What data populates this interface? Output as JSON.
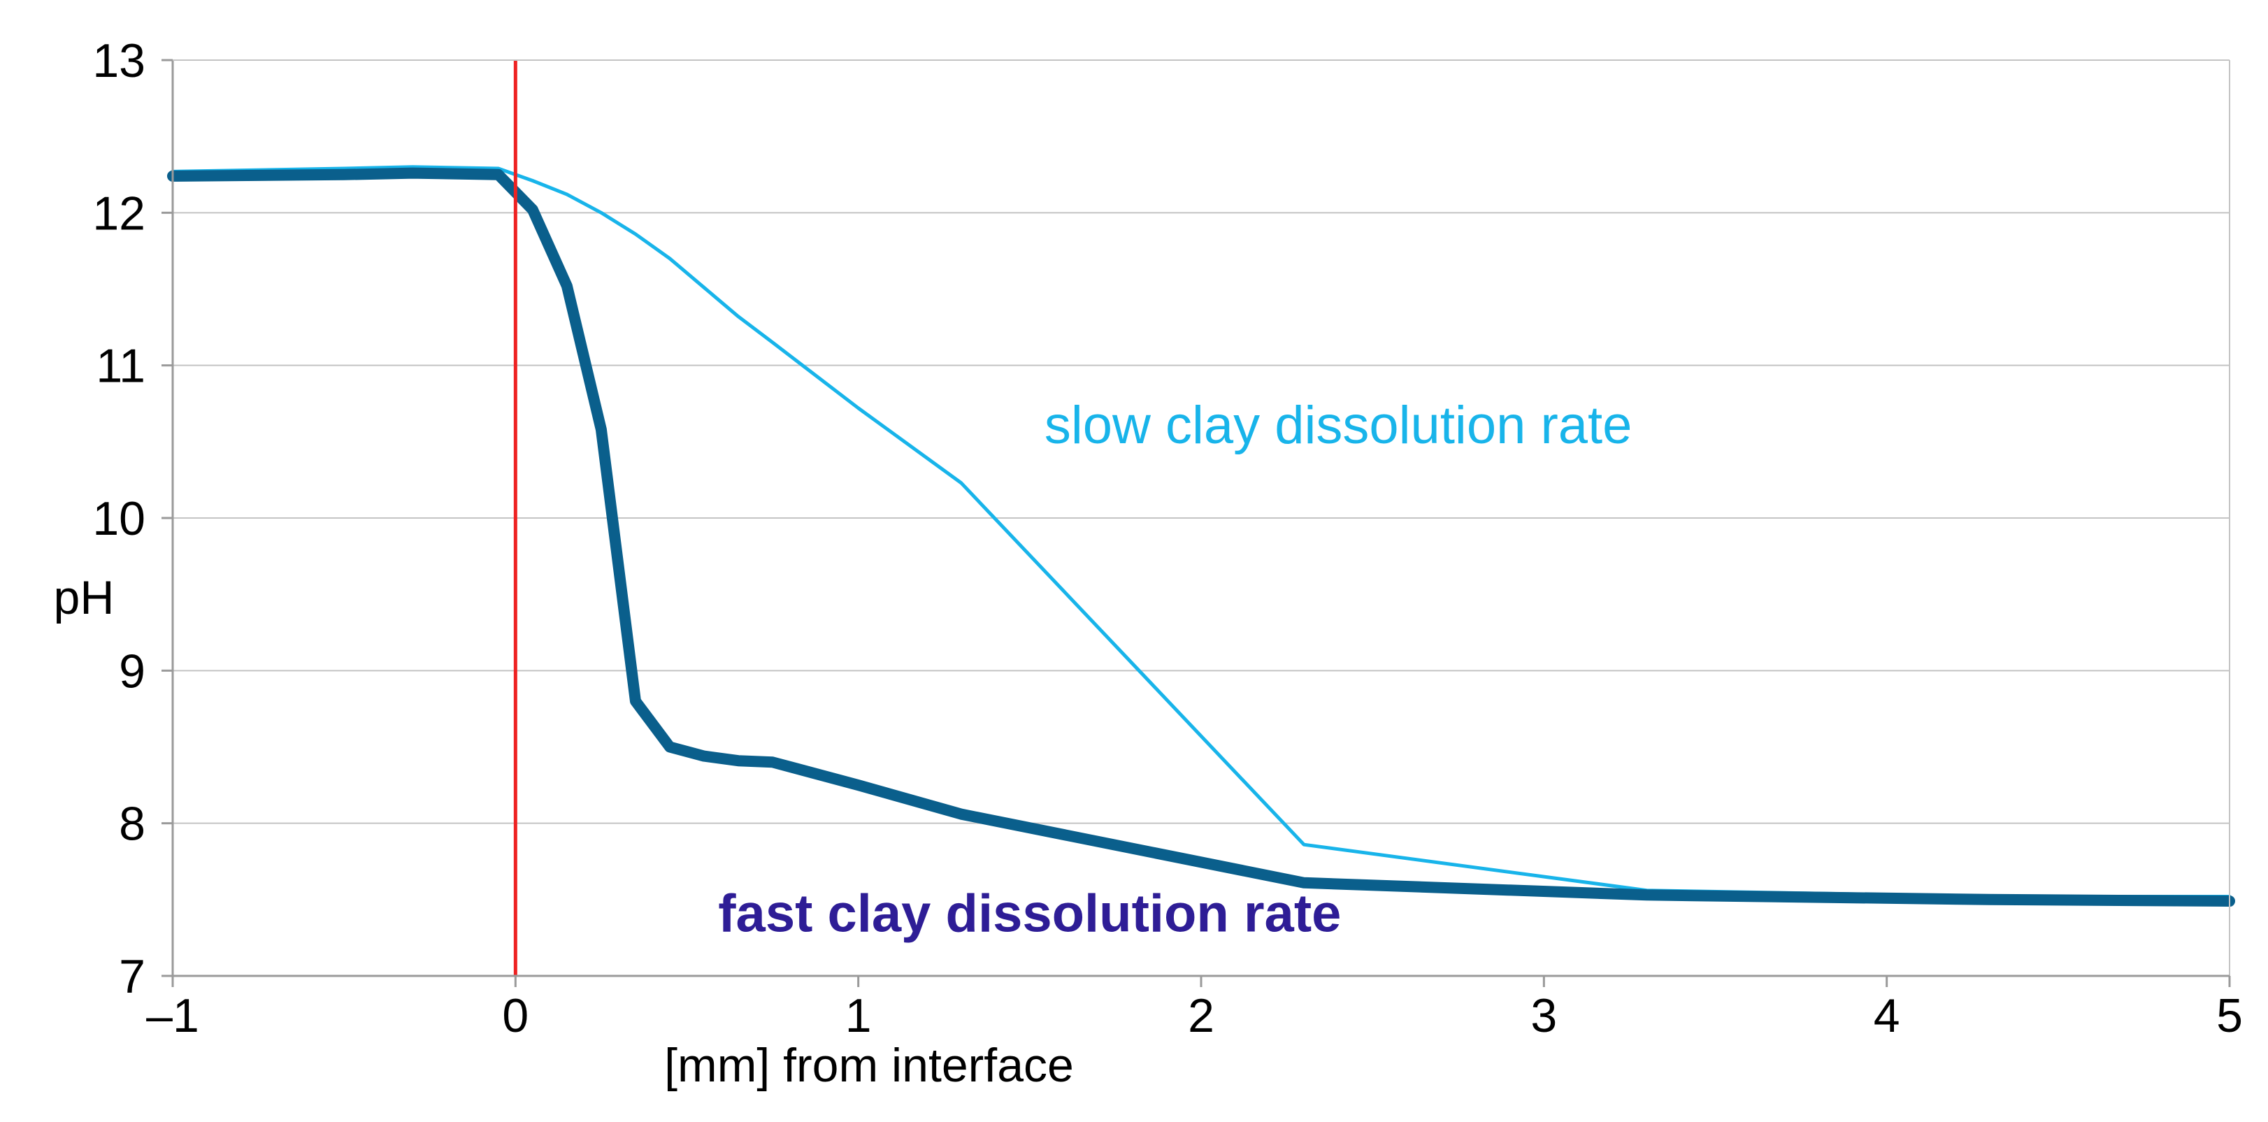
{
  "chart_data": {
    "type": "line",
    "title": "",
    "xlabel": "[mm] from interface",
    "ylabel": "pH",
    "xlim": [
      -1,
      5
    ],
    "ylim": [
      7,
      13
    ],
    "xticks": [
      -1,
      0,
      1,
      2,
      3,
      4,
      5
    ],
    "xtick_labels": [
      "–1",
      "0",
      "1",
      "2",
      "3",
      "4",
      "5"
    ],
    "yticks": [
      7,
      8,
      9,
      10,
      11,
      12,
      13
    ],
    "ytick_labels": [
      "7",
      "8",
      "9",
      "10",
      "11",
      "12",
      "13"
    ],
    "grid": true,
    "vline": {
      "x": 0,
      "color": "#ee2222"
    },
    "series": [
      {
        "name": "slow clay dissolution rate",
        "color": "#18b4ea",
        "style": "thin",
        "x": [
          -1,
          -0.5,
          -0.3,
          -0.05,
          0.05,
          0.15,
          0.25,
          0.35,
          0.45,
          0.55,
          0.65,
          0.75,
          1.0,
          1.3,
          2.3,
          3.3,
          4.3,
          5
        ],
        "y": [
          12.27,
          12.29,
          12.3,
          12.29,
          12.21,
          12.12,
          12.0,
          11.86,
          11.7,
          11.51,
          11.32,
          11.15,
          10.72,
          10.23,
          7.86,
          7.56,
          7.52,
          7.52
        ]
      },
      {
        "name": "fast clay dissolution rate",
        "color": "#0a5f8c",
        "style": "thick",
        "x": [
          -1,
          -0.5,
          -0.3,
          -0.05,
          0.05,
          0.15,
          0.25,
          0.35,
          0.45,
          0.55,
          0.65,
          0.75,
          1.0,
          1.3,
          2.3,
          3.3,
          4.3,
          5
        ],
        "y": [
          12.24,
          12.25,
          12.26,
          12.25,
          12.02,
          11.52,
          10.58,
          8.8,
          8.5,
          8.44,
          8.41,
          8.4,
          8.25,
          8.06,
          7.61,
          7.53,
          7.5,
          7.49
        ]
      }
    ],
    "annotations": [
      {
        "text": "slow clay dissolution rate",
        "x": 2.4,
        "y": 10.6,
        "color": "#18b4ea",
        "weight": "normal"
      },
      {
        "text": "fast clay dissolution rate",
        "x": 1.5,
        "y": 7.4,
        "color": "#2e1d96",
        "weight": "bold"
      }
    ]
  }
}
